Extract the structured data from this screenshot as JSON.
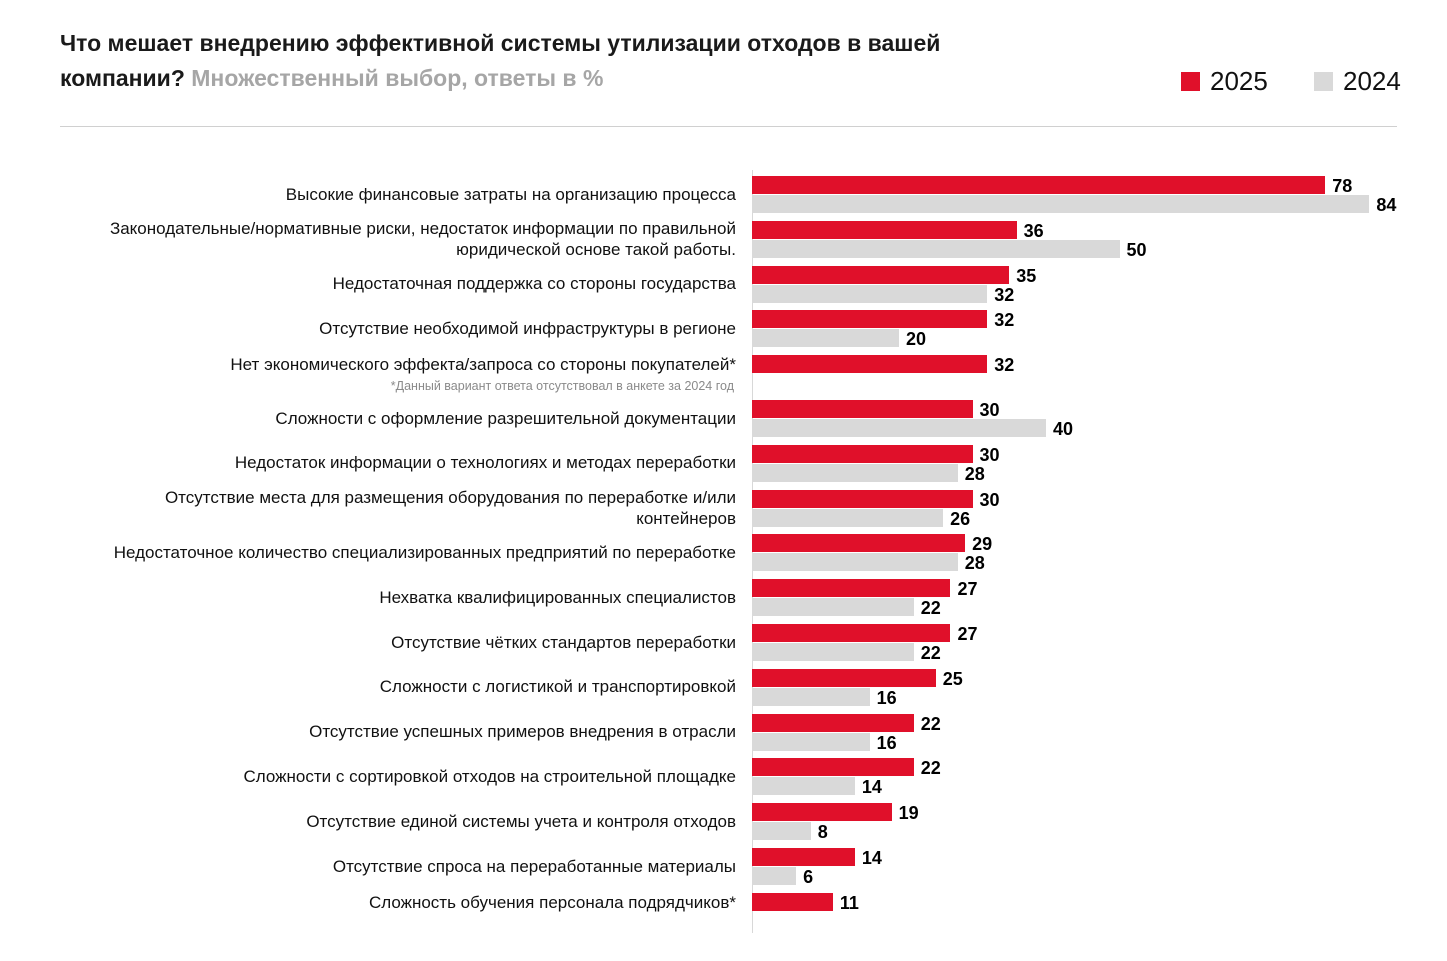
{
  "chart_data": {
    "type": "bar",
    "orientation": "horizontal",
    "title": "Что мешает внедрению эффективной системы утилизации отходов в вашей компании?",
    "subtitle": "Множественный выбор, ответы в %",
    "legend": {
      "placement": "top-right",
      "entries": [
        "2025",
        "2024"
      ]
    },
    "colors": {
      "2025": "#e0102a",
      "2024": "#d9d9d9"
    },
    "xlim": [
      0,
      84
    ],
    "grid": false,
    "categories": [
      "Высокие финансовые затраты на организацию процесса",
      "Законодательные/нормативные риски, недостаток информации по правильной юридической основе такой работы.",
      "Недостаточная поддержка со стороны государства",
      "Отсутствие необходимой инфраструктуры в регионе",
      "Нет экономического эффекта/запроса со стороны покупателей*",
      "Сложности с оформление разрешительной документации",
      "Недостаток информации о технологиях и методах переработки",
      "Отсутствие места для размещения оборудования по переработке и/или контейнеров",
      "Недостаточное количество специализированных предприятий по переработке",
      "Нехватка квалифицированных специалистов",
      "Отсутствие чётких стандартов переработки",
      "Сложности с логистикой и транспортировкой",
      "Отсутствие успешных примеров внедрения в отрасли",
      "Сложности с сортировкой отходов на строительной площадке",
      "Отсутствие единой системы учета и контроля отходов",
      "Отсутствие спроса на переработанные материалы",
      "Сложность обучения персонала подрядчиков*"
    ],
    "label_lines": [
      [
        "Высокие финансовые затраты на организацию процесса"
      ],
      [
        "Законодательные/нормативные риски, недостаток информации по правильной",
        "юридической основе такой работы."
      ],
      [
        "Недостаточная поддержка со стороны государства"
      ],
      [
        "Отсутствие необходимой инфраструктуры в регионе"
      ],
      [
        "Нет экономического эффекта/запроса со стороны покупателей*"
      ],
      [
        "Сложности с оформление разрешительной документации"
      ],
      [
        "Недостаток информации о технологиях и методах переработки"
      ],
      [
        "Отсутствие места для размещения оборудования по переработке и/или",
        "контейнеров"
      ],
      [
        "Недостаточное количество специализированных предприятий по переработке"
      ],
      [
        "Нехватка квалифицированных специалистов"
      ],
      [
        "Отсутствие чётких стандартов переработки"
      ],
      [
        "Сложности с логистикой и транспортировкой"
      ],
      [
        "Отсутствие успешных примеров внедрения в отрасли"
      ],
      [
        "Сложности с сортировкой отходов на строительной площадке"
      ],
      [
        "Отсутствие единой системы учета и контроля отходов"
      ],
      [
        "Отсутствие спроса на переработанные материалы"
      ],
      [
        "Сложность обучения персонала подрядчиков*"
      ]
    ],
    "series": [
      {
        "name": "2025",
        "values": [
          78,
          36,
          35,
          32,
          32,
          30,
          30,
          30,
          29,
          27,
          27,
          25,
          22,
          22,
          19,
          14,
          11
        ]
      },
      {
        "name": "2024",
        "values": [
          84,
          50,
          32,
          20,
          null,
          40,
          28,
          26,
          28,
          22,
          22,
          16,
          16,
          14,
          8,
          6,
          null
        ]
      }
    ],
    "annotations": [
      {
        "category_index": 4,
        "text": "*Данный вариант ответа отсутствовал в анкете за 2024 год"
      }
    ]
  }
}
